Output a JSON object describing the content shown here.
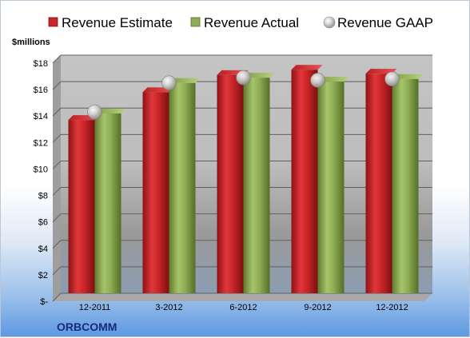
{
  "chart_data": {
    "type": "bar",
    "company": "ORBCOMM",
    "ylabel": "$millions",
    "categories": [
      "12-2011",
      "3-2012",
      "6-2012",
      "9-2012",
      "12-2012"
    ],
    "ylim": [
      0,
      18
    ],
    "yticks": [
      0,
      2,
      4,
      6,
      8,
      10,
      12,
      14,
      16,
      18
    ],
    "ytick_labels": [
      "$-",
      "$2",
      "$4",
      "$6",
      "$8",
      "$10",
      "$12",
      "$14",
      "$16",
      "$18"
    ],
    "series": [
      {
        "name": "Revenue Estimate",
        "type": "bar",
        "values": [
          13.1,
          15.2,
          16.5,
          16.9,
          16.6
        ]
      },
      {
        "name": "Revenue Actual",
        "type": "bar",
        "values": [
          13.6,
          15.9,
          16.3,
          16.0,
          16.2
        ]
      },
      {
        "name": "Revenue GAAP",
        "type": "scatter",
        "values": [
          13.7,
          15.9,
          16.3,
          16.1,
          16.2
        ]
      }
    ],
    "legend_position": "top",
    "grid": true,
    "colors": {
      "estimate": "#c9262b",
      "actual": "#8fad55",
      "gaap": "#c0c0c0"
    }
  }
}
